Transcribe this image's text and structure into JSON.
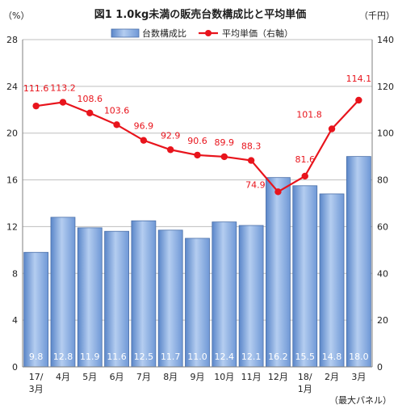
{
  "chart_data": {
    "type": "bar+line",
    "title": "図1 1.0kg未満の販売台数構成比と平均単価",
    "left_axis_unit": "（%）",
    "right_axis_unit": "（千円）",
    "note": "（最大パネル）",
    "categories": [
      [
        "17/",
        "3月"
      ],
      [
        "4月"
      ],
      [
        "5月"
      ],
      [
        "6月"
      ],
      [
        "7月"
      ],
      [
        "8月"
      ],
      [
        "9月"
      ],
      [
        "10月"
      ],
      [
        "11月"
      ],
      [
        "12月"
      ],
      [
        "18/",
        "1月"
      ],
      [
        "2月"
      ],
      [
        "3月"
      ]
    ],
    "y_left": {
      "min": 0,
      "max": 28,
      "ticks": [
        0,
        4,
        8,
        12,
        16,
        20,
        24,
        28
      ]
    },
    "y_right": {
      "min": 0,
      "max": 140,
      "ticks": [
        0,
        20,
        40,
        60,
        80,
        100,
        120,
        140
      ]
    },
    "grid": true,
    "legend_position": "top",
    "series": [
      {
        "name": "台数構成比",
        "type": "bar",
        "axis": "left",
        "color": "#7ea6de",
        "values": [
          9.8,
          12.8,
          11.9,
          11.6,
          12.5,
          11.7,
          11.0,
          12.4,
          12.1,
          16.2,
          15.5,
          14.8,
          18.0
        ],
        "labels": [
          "9.8",
          "12.8",
          "11.9",
          "11.6",
          "12.5",
          "11.7",
          "11.0",
          "12.4",
          "12.1",
          "16.2",
          "15.5",
          "14.8",
          "18.0"
        ]
      },
      {
        "name": "平均単価（右軸）",
        "type": "line",
        "axis": "right",
        "color": "#e8141c",
        "values": [
          111.6,
          113.2,
          108.6,
          103.6,
          96.9,
          92.9,
          90.6,
          89.9,
          88.3,
          74.9,
          81.6,
          101.8,
          114.1
        ],
        "labels": [
          "111.6",
          "113.2",
          "108.6",
          "103.6",
          "96.9",
          "92.9",
          "90.6",
          "89.9",
          "88.3",
          "74.9",
          "81.6",
          "101.8",
          "114.1"
        ]
      }
    ]
  }
}
